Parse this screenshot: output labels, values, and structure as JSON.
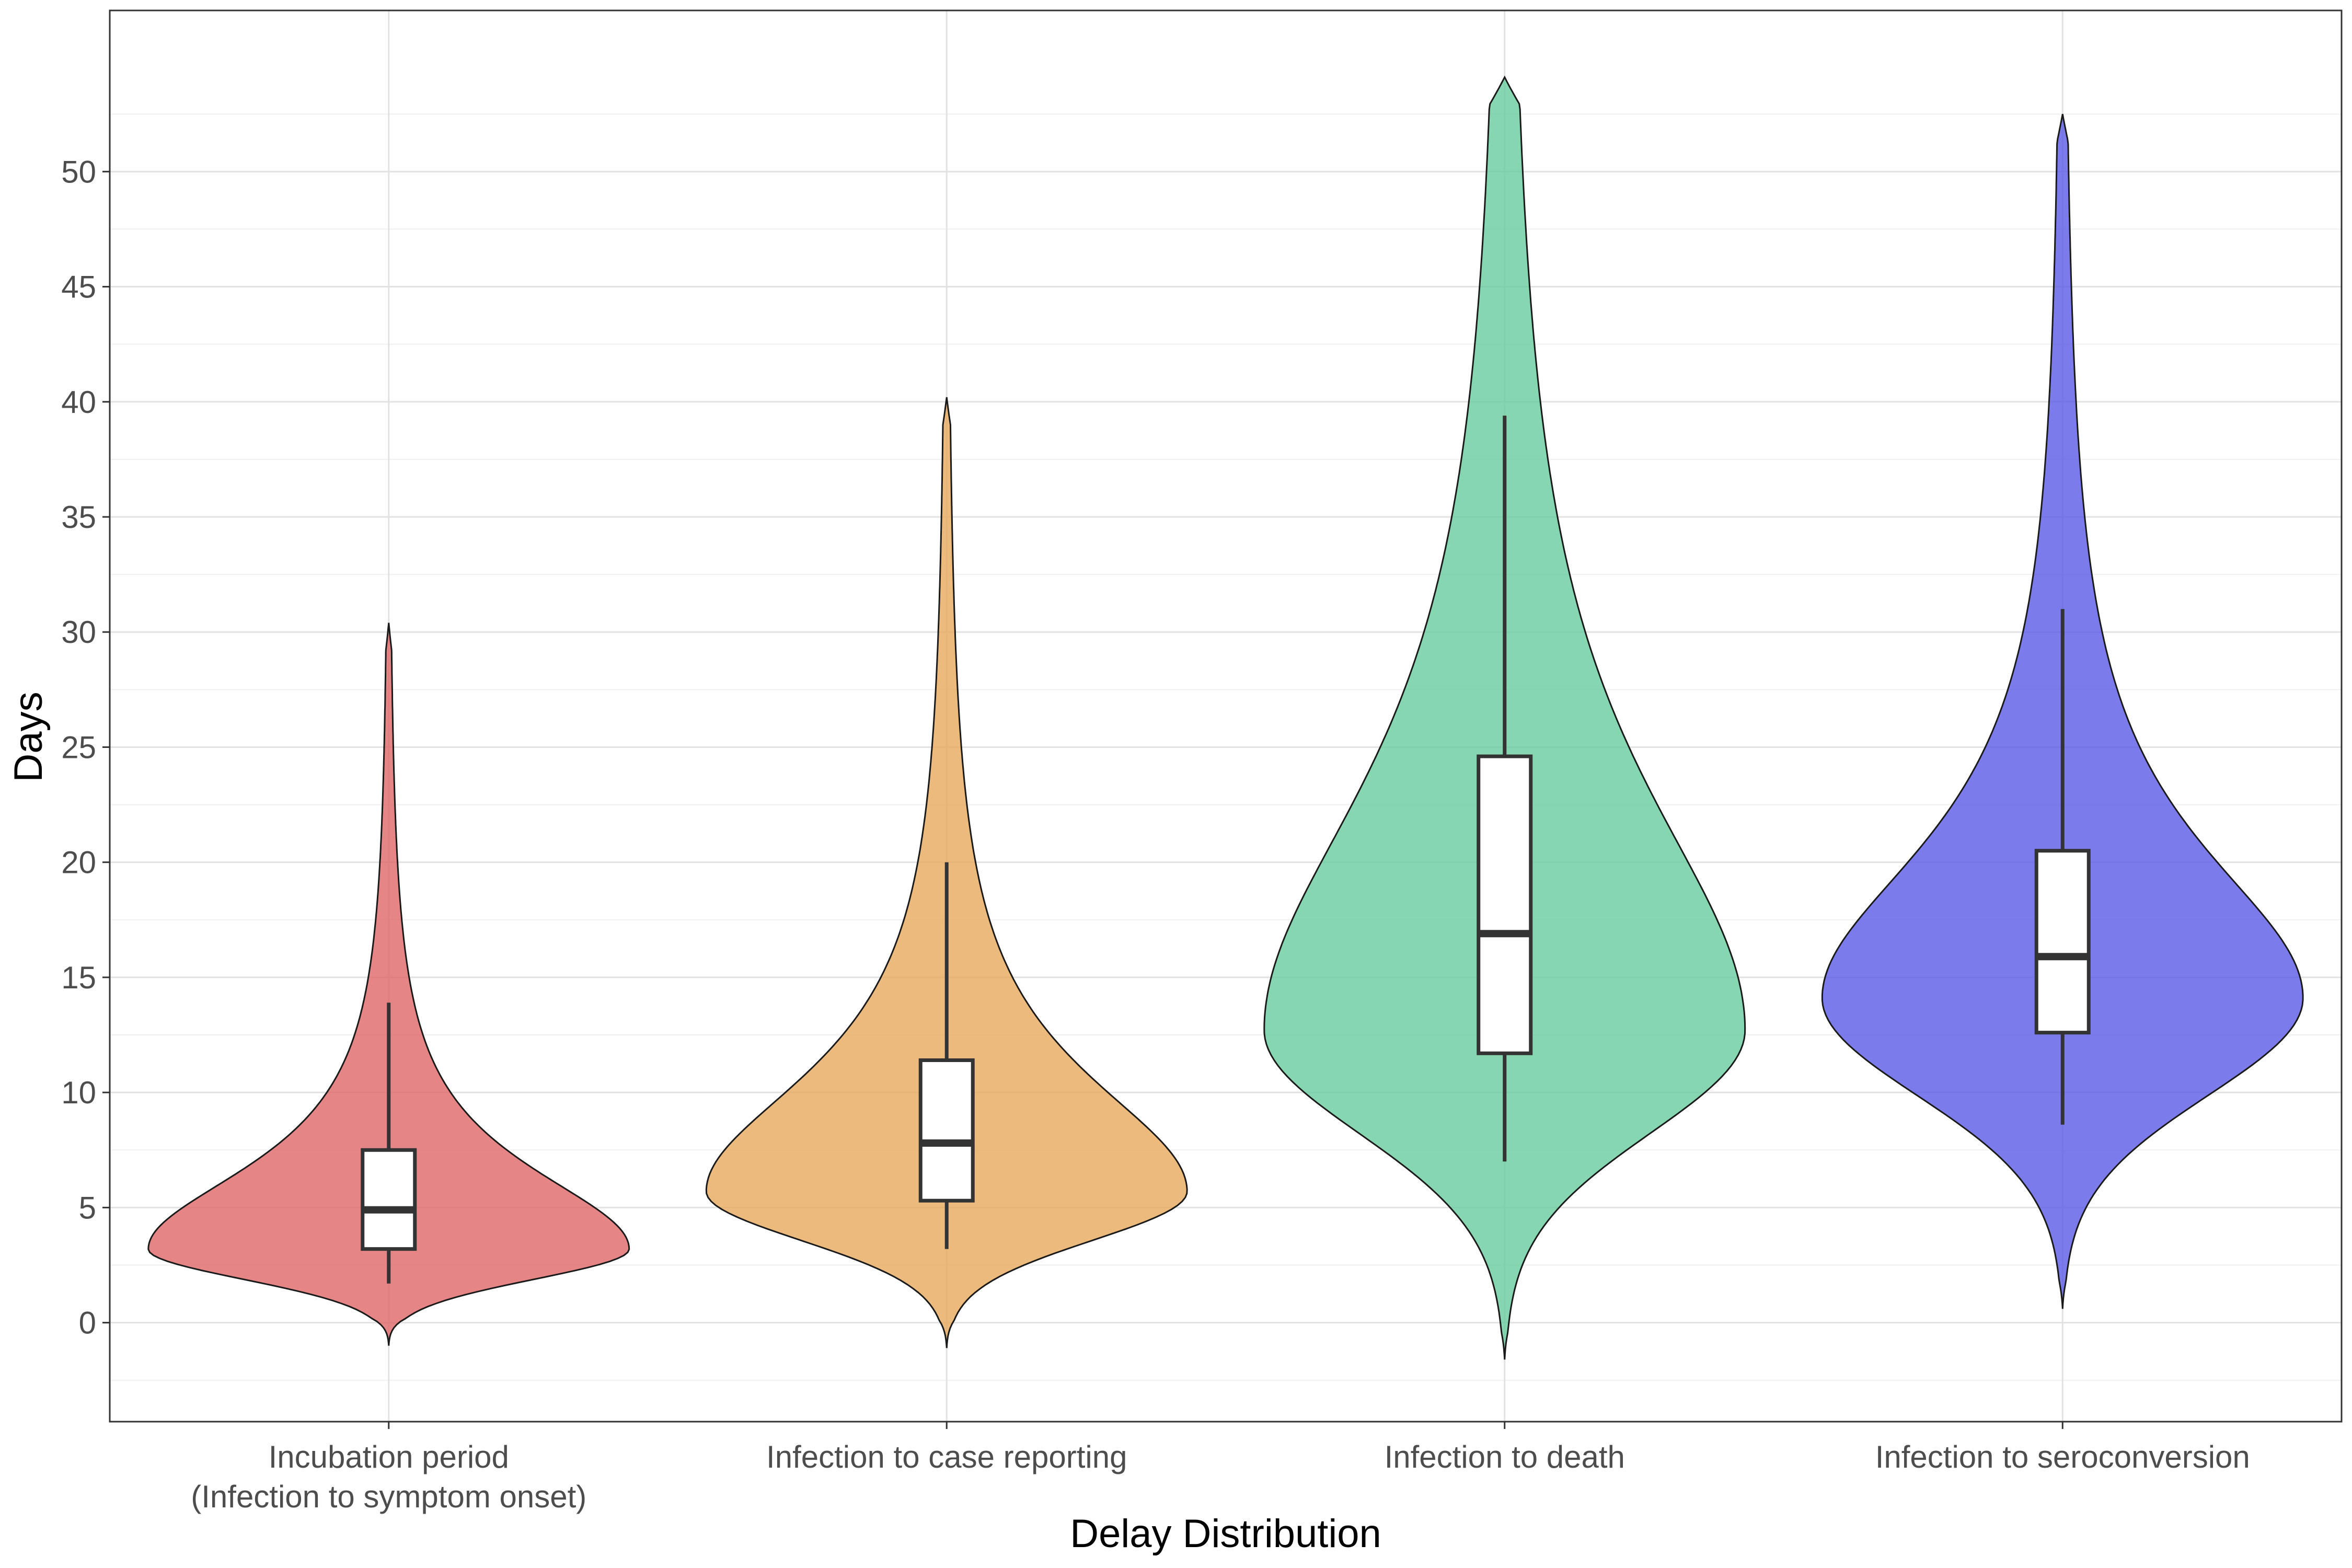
{
  "chart_data": {
    "type": "violin",
    "xlabel": "Delay Distribution",
    "ylabel": "Days",
    "ylim": [
      -4.3,
      57
    ],
    "y_ticks": [
      0,
      5,
      10,
      15,
      20,
      25,
      30,
      35,
      40,
      45,
      50
    ],
    "y_tick_labels": [
      "0",
      "5",
      "10",
      "15",
      "20",
      "25",
      "30",
      "35",
      "40",
      "45",
      "50"
    ],
    "grid": true,
    "legend": "none",
    "categories": [
      {
        "label_lines": [
          "Incubation period",
          "(Infection to symptom onset)"
        ],
        "color": "#E06666",
        "box": {
          "whisker_low": 1.7,
          "q1": 3.2,
          "median": 4.9,
          "q3": 7.5,
          "whisker_high": 13.9
        },
        "density_max_at": 3.2,
        "violin_extent": [
          -1.0,
          30.4
        ]
      },
      {
        "label_lines": [
          "Infection to case reporting"
        ],
        "color": "#E9A95D",
        "box": {
          "whisker_low": 3.2,
          "q1": 5.3,
          "median": 7.8,
          "q3": 11.4,
          "whisker_high": 20.0
        },
        "density_max_at": 5.7,
        "violin_extent": [
          -1.1,
          40.2
        ]
      },
      {
        "label_lines": [
          "Infection to death"
        ],
        "color": "#66CC9E",
        "box": {
          "whisker_low": 7.0,
          "q1": 11.7,
          "median": 16.9,
          "q3": 24.6,
          "whisker_high": 39.4
        },
        "density_max_at": 12.7,
        "violin_extent": [
          -1.6,
          54.1
        ]
      },
      {
        "label_lines": [
          "Infection to seroconversion"
        ],
        "color": "#5A5AE6",
        "box": {
          "whisker_low": 8.6,
          "q1": 12.6,
          "median": 15.9,
          "q3": 20.5,
          "whisker_high": 31.0
        },
        "density_max_at": 14.1,
        "violin_extent": [
          0.6,
          52.5
        ]
      }
    ]
  }
}
